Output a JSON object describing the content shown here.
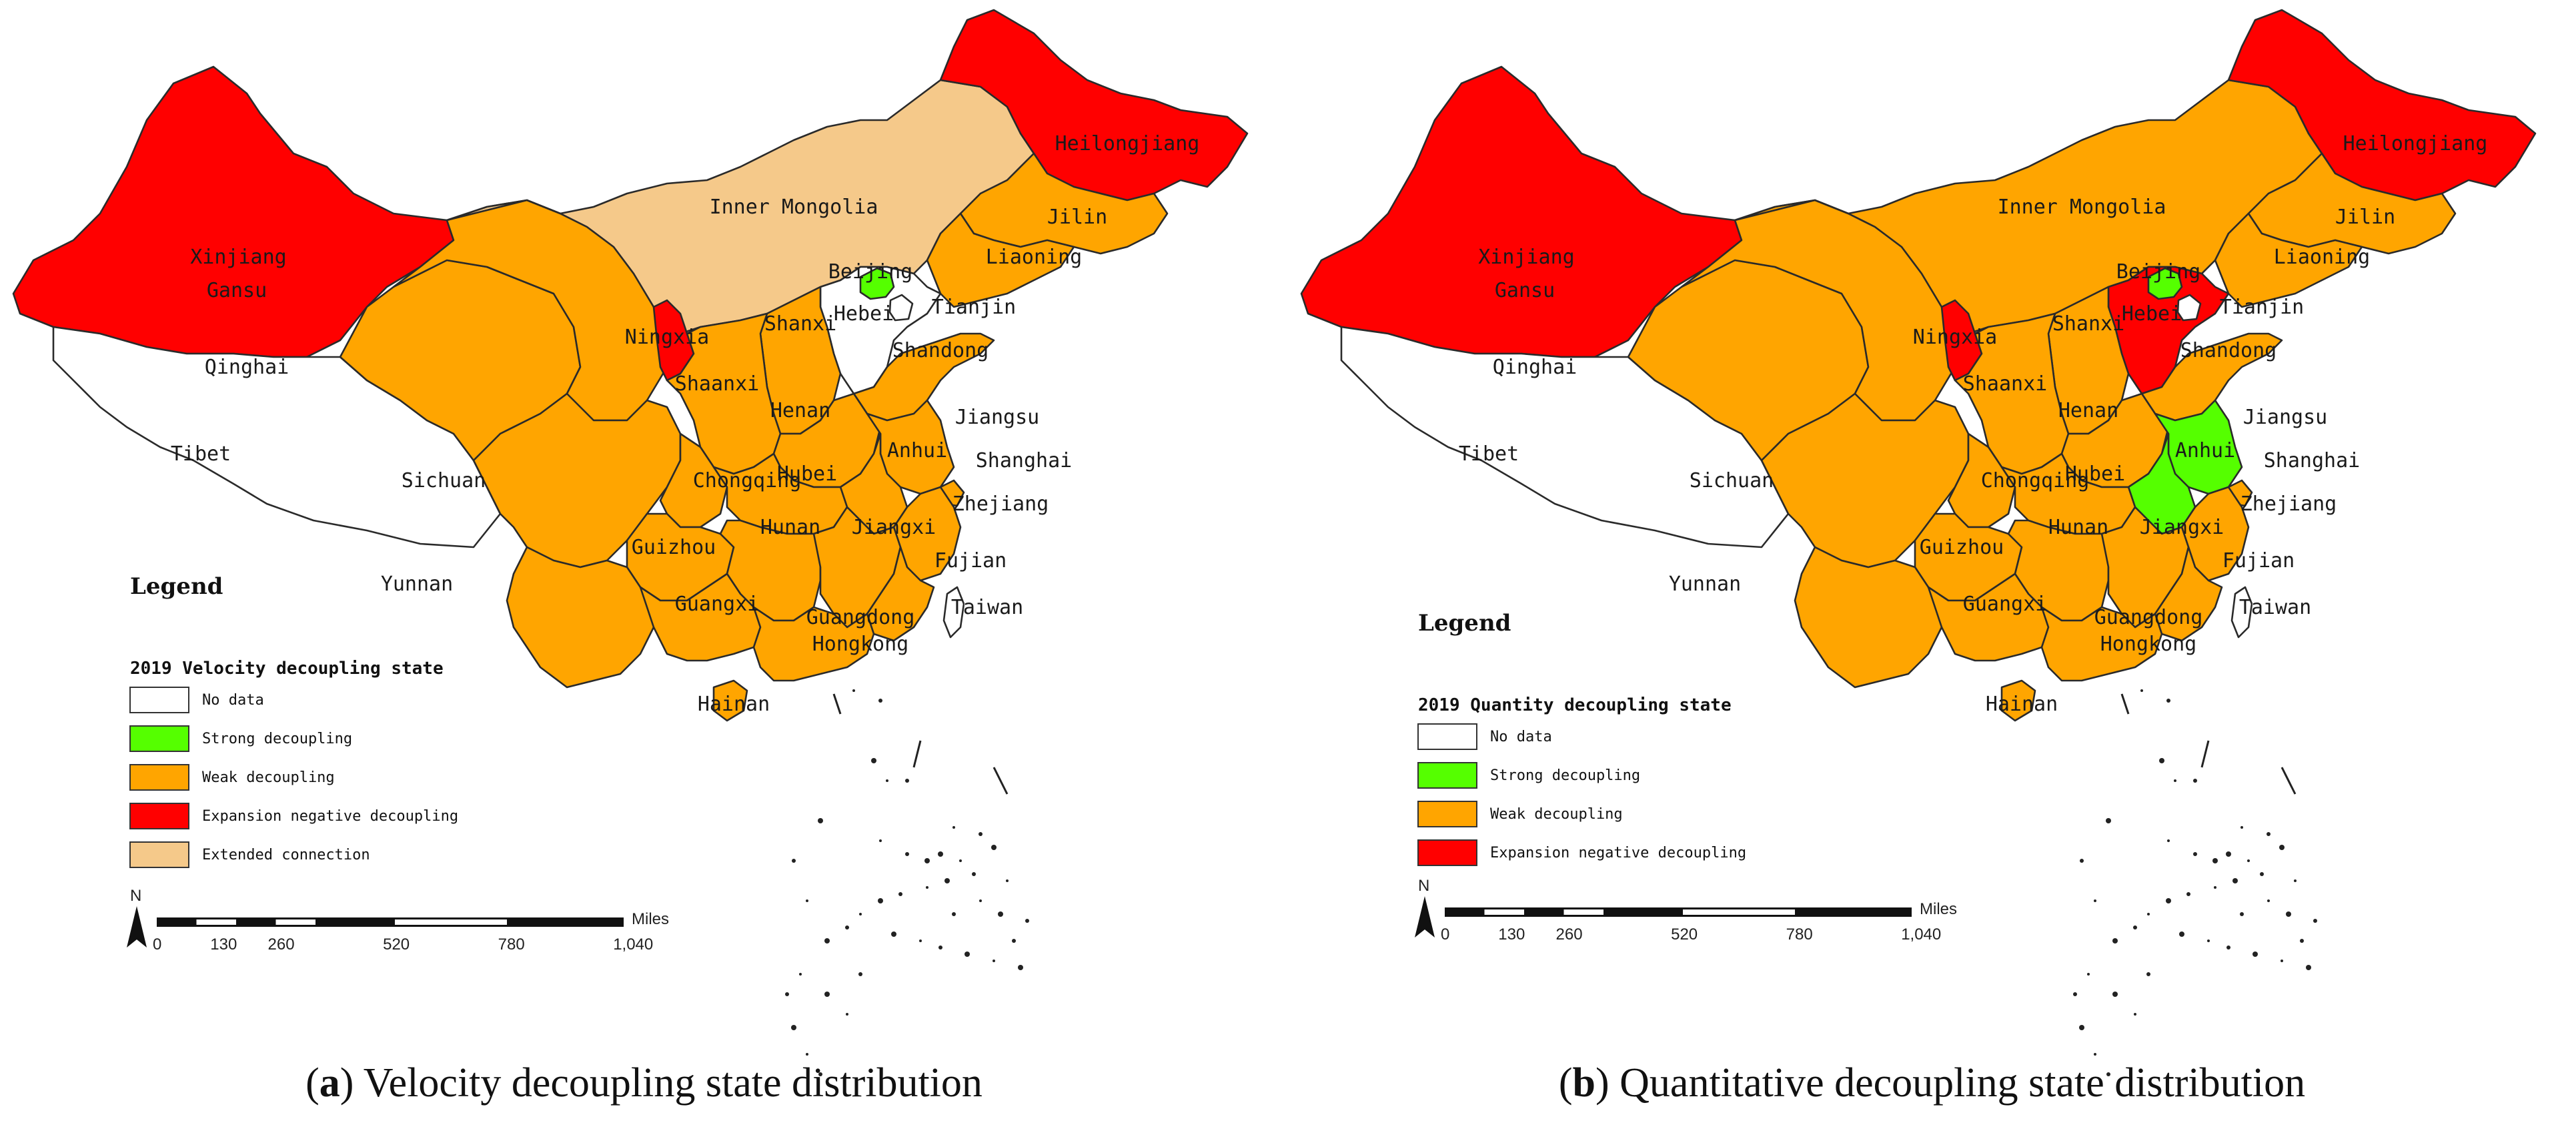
{
  "colors": {
    "no_data": "#ffffff",
    "strong": "#55ff00",
    "weak": "#ffa500",
    "expansion": "#ff0000",
    "extended": "#f5c98a"
  },
  "maps": [
    {
      "id": "a",
      "caption_letter": "a",
      "caption_text": ") Velocity decoupling state distribution",
      "legend_title": "Legend",
      "legend_subtitle": "2019 Velocity decoupling state",
      "legend_items": [
        {
          "label": "No data",
          "color": "#ffffff"
        },
        {
          "label": "Strong decoupling",
          "color": "#55ff00"
        },
        {
          "label": "Weak decoupling",
          "color": "#ffa500"
        },
        {
          "label": "Expansion negative decoupling",
          "color": "#ff0000"
        },
        {
          "label": "Extended connection",
          "color": "#f5c98a"
        }
      ],
      "province_states": {
        "Xinjiang": "expansion",
        "Tibet": "no_data",
        "Qinghai": "weak",
        "Gansu": "weak",
        "Inner Mongolia": "extended",
        "Heilongjiang": "expansion",
        "Jilin": "weak",
        "Liaoning": "weak",
        "Beijing": "strong",
        "Tianjin": "no_data",
        "Hebei": "no_data",
        "Shanxi": "weak",
        "Shandong": "weak",
        "Ningxia": "expansion",
        "Shaanxi": "weak",
        "Henan": "weak",
        "Jiangsu": "weak",
        "Anhui": "weak",
        "Shanghai": "weak",
        "Sichuan": "weak",
        "Chongqing": "weak",
        "Hubei": "weak",
        "Zhejiang": "weak",
        "Guizhou": "weak",
        "Hunan": "weak",
        "Jiangxi": "weak",
        "Fujian": "weak",
        "Yunnan": "weak",
        "Guangxi": "weak",
        "Guangdong": "weak",
        "Hainan": "weak",
        "Taiwan": "no_data"
      }
    },
    {
      "id": "b",
      "caption_letter": "b",
      "caption_text": ") Quantitative decoupling state distribution",
      "legend_title": "Legend",
      "legend_subtitle": "2019 Quantity decoupling state",
      "legend_items": [
        {
          "label": "No data",
          "color": "#ffffff"
        },
        {
          "label": "Strong decoupling",
          "color": "#55ff00"
        },
        {
          "label": "Weak decoupling",
          "color": "#ffa500"
        },
        {
          "label": "Expansion negative decoupling",
          "color": "#ff0000"
        }
      ],
      "province_states": {
        "Xinjiang": "expansion",
        "Tibet": "no_data",
        "Qinghai": "weak",
        "Gansu": "weak",
        "Inner Mongolia": "weak",
        "Heilongjiang": "expansion",
        "Jilin": "weak",
        "Liaoning": "weak",
        "Beijing": "strong",
        "Tianjin": "no_data",
        "Hebei": "expansion",
        "Shanxi": "weak",
        "Shandong": "weak",
        "Ningxia": "expansion",
        "Shaanxi": "weak",
        "Henan": "weak",
        "Jiangsu": "strong",
        "Anhui": "strong",
        "Shanghai": "weak",
        "Sichuan": "weak",
        "Chongqing": "weak",
        "Hubei": "weak",
        "Zhejiang": "weak",
        "Guizhou": "weak",
        "Hunan": "weak",
        "Jiangxi": "weak",
        "Fujian": "weak",
        "Yunnan": "weak",
        "Guangxi": "weak",
        "Guangdong": "weak",
        "Hainan": "weak",
        "Taiwan": "no_data"
      }
    }
  ],
  "province_labels": {
    "Xinjiang": "Xinjiang",
    "Tibet": "Tibet",
    "Qinghai": "Qinghai",
    "Gansu": "Gansu",
    "Inner Mongolia": "Inner Mongolia",
    "Heilongjiang": "Heilongjiang",
    "Jilin": "Jilin",
    "Liaoning": "Liaoning",
    "Beijing": "Beijing",
    "Tianjin": "Tianjin",
    "Hebei": "Hebei",
    "Shanxi": "Shanxi",
    "Shandong": "Shandong",
    "Ningxia": "Ningxia",
    "Shaanxi": "Shaanxi",
    "Henan": "Henan",
    "Jiangsu": "Jiangsu",
    "Anhui": "Anhui",
    "Shanghai": "Shanghai",
    "Sichuan": "Sichuan",
    "Chongqing": "Chongqing",
    "Hubei": "Hubei",
    "Zhejiang": "Zhejiang",
    "Guizhou": "Guizhou",
    "Hunan": "Hunan",
    "Jiangxi": "Jiangxi",
    "Fujian": "Fujian",
    "Yunnan": "Yunnan",
    "Guangxi": "Guangxi",
    "Guangdong": "Guangdong",
    "Hongkong": "Hongkong",
    "Hainan": "Hainan",
    "Taiwan": "Taiwan"
  },
  "scale_bar": {
    "north": "N",
    "unit": "Miles",
    "ticks": [
      "0",
      "130",
      "260",
      "520",
      "780",
      "1,040"
    ]
  }
}
